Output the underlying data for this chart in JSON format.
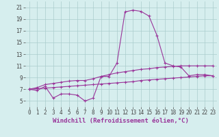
{
  "x": [
    0,
    1,
    2,
    3,
    4,
    5,
    6,
    7,
    8,
    9,
    10,
    11,
    12,
    13,
    14,
    15,
    16,
    17,
    18,
    19,
    20,
    21,
    22,
    23
  ],
  "line1": [
    7.0,
    6.8,
    7.5,
    5.5,
    6.2,
    6.2,
    6.0,
    5.0,
    5.5,
    9.2,
    9.2,
    11.5,
    20.2,
    20.5,
    20.3,
    19.5,
    16.2,
    11.5,
    11.0,
    10.8,
    9.3,
    9.5,
    9.5,
    9.3
  ],
  "line2": [
    7.0,
    7.3,
    7.8,
    8.0,
    8.2,
    8.4,
    8.5,
    8.5,
    8.8,
    9.2,
    9.5,
    9.8,
    10.0,
    10.2,
    10.4,
    10.5,
    10.7,
    10.8,
    10.9,
    11.0,
    11.0,
    11.0,
    11.0,
    11.0
  ],
  "line3": [
    7.0,
    7.1,
    7.2,
    7.3,
    7.4,
    7.5,
    7.6,
    7.7,
    7.8,
    7.9,
    8.0,
    8.1,
    8.2,
    8.3,
    8.5,
    8.6,
    8.7,
    8.8,
    8.9,
    9.0,
    9.1,
    9.2,
    9.3,
    9.3
  ],
  "color": "#993399",
  "bg_color": "#d6eeee",
  "grid_color": "#aacccc",
  "ylim": [
    4,
    22
  ],
  "yticks": [
    5,
    7,
    9,
    11,
    13,
    15,
    17,
    19,
    21
  ],
  "xlim": [
    -0.5,
    23.5
  ],
  "xticks": [
    0,
    1,
    2,
    3,
    4,
    5,
    6,
    7,
    8,
    9,
    10,
    11,
    12,
    13,
    14,
    15,
    16,
    17,
    18,
    19,
    20,
    21,
    22,
    23
  ],
  "xlabel": "Windchill (Refroidissement éolien,°C)",
  "xlabel_fontsize": 6.5,
  "tick_fontsize": 5.5
}
